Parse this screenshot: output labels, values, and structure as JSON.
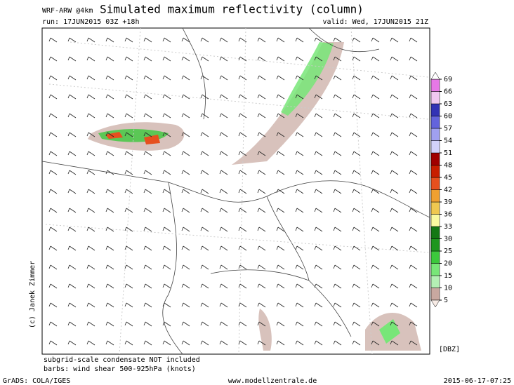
{
  "header": {
    "model": "WRF-ARW @4km",
    "title": "Simulated maximum reflectivity (column)",
    "run": "run: 17JUN2015 03Z +18h",
    "valid": "valid: Wed, 17JUN2015 21Z"
  },
  "credit": "(c) Janek Zimmer",
  "colorbar": {
    "unit": "[DBZ]",
    "ticks": [
      5,
      10,
      15,
      20,
      25,
      30,
      33,
      36,
      39,
      42,
      45,
      48,
      51,
      54,
      57,
      60,
      63,
      66,
      69
    ],
    "colors": [
      "#c8a8a0",
      "#b4f0b4",
      "#78e678",
      "#3cc83c",
      "#1e961e",
      "#147814",
      "#fafaa0",
      "#f0c850",
      "#f0a030",
      "#e6501e",
      "#c81e00",
      "#a00000",
      "#d2d2fa",
      "#a0a0f0",
      "#6464dc",
      "#3232b4",
      "#f0c8f0",
      "#e678e6"
    ]
  },
  "notes": [
    "subgrid-scale condensate NOT included",
    "barbs: wind shear 500-925hPa (knots)"
  ],
  "footer": {
    "software": "GrADS: COLA/IGES",
    "site": "www.modellzentrale.de",
    "timestamp": "2015-06-17-07:25"
  }
}
